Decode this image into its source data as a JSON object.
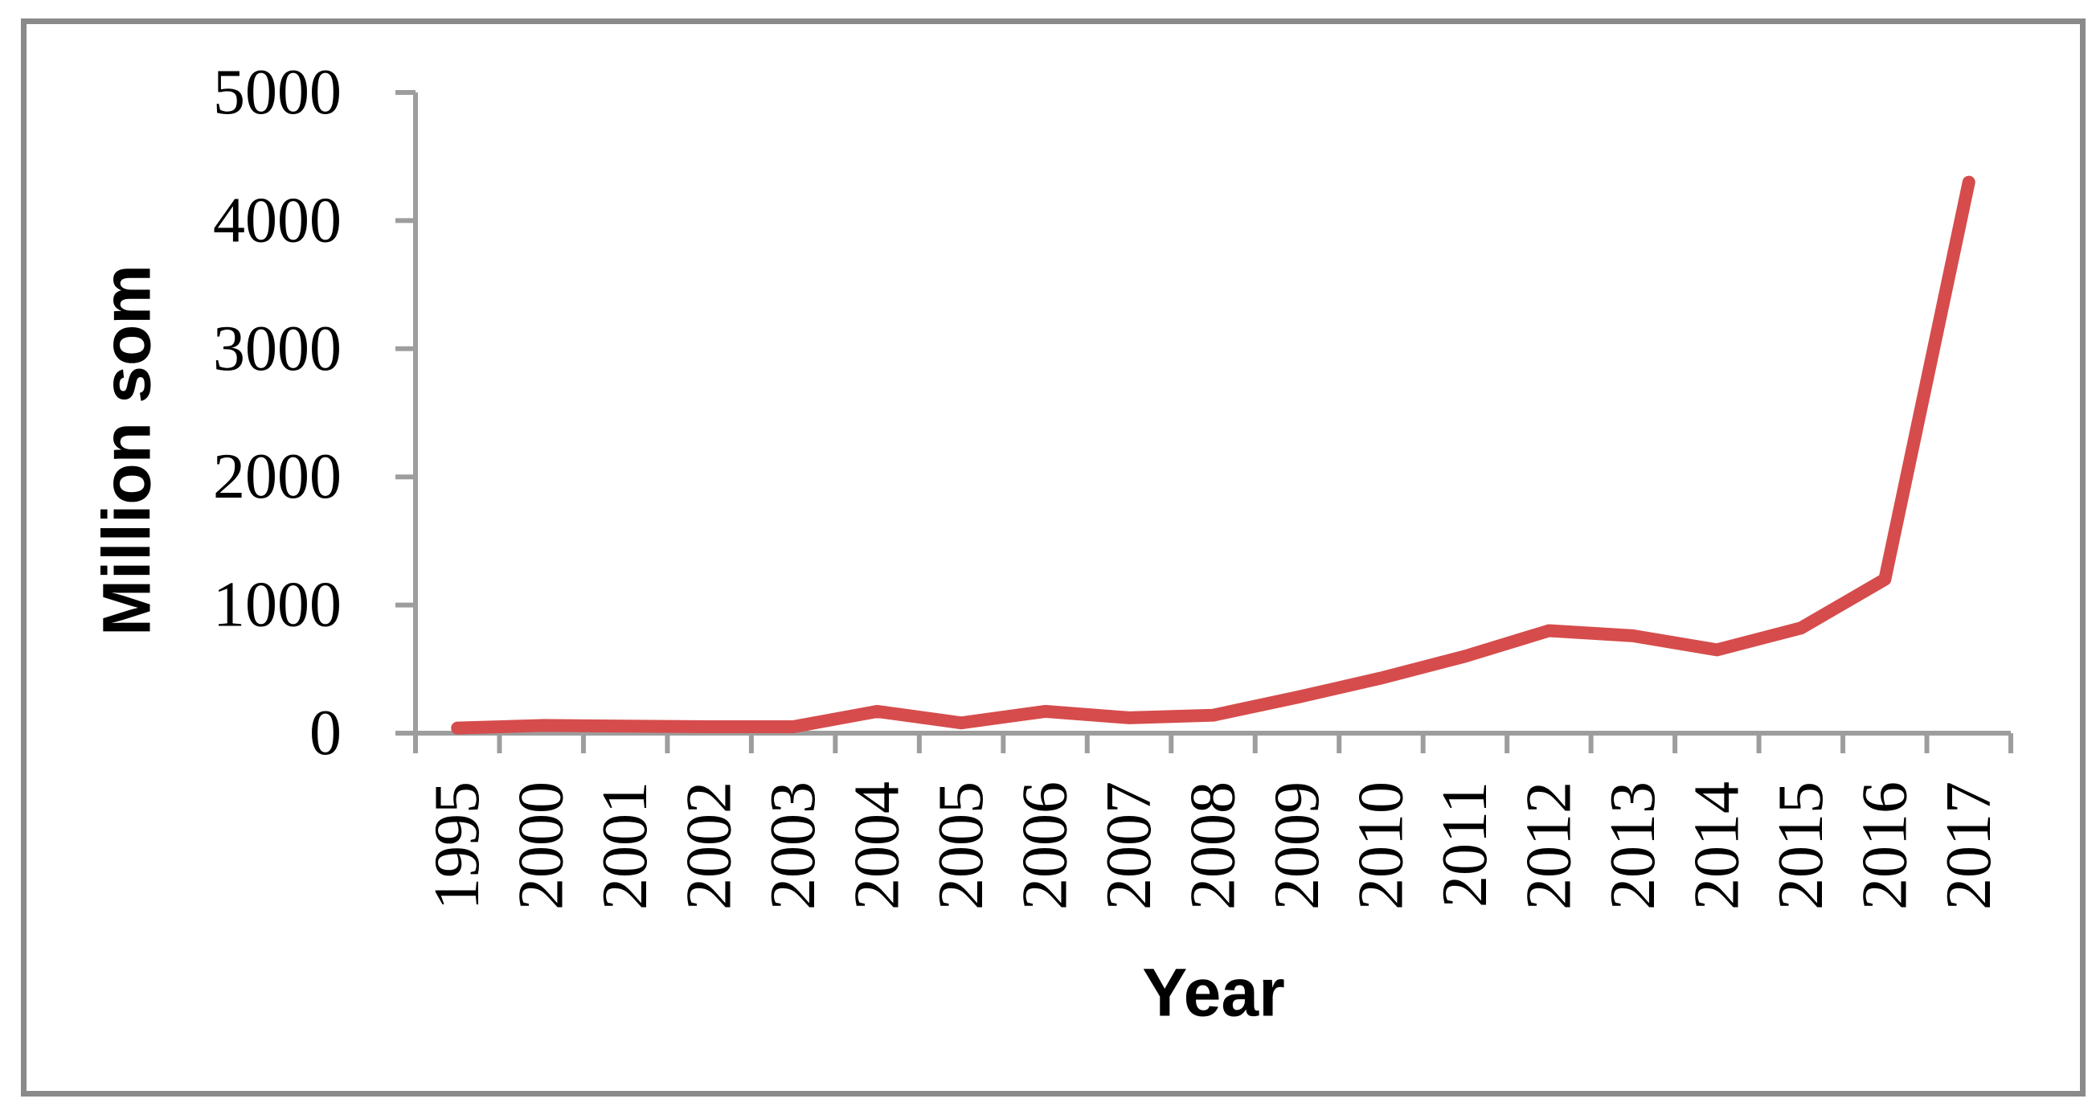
{
  "chart_data": {
    "type": "line",
    "title": "",
    "xlabel": "Year",
    "ylabel": "Million som",
    "categories": [
      "1995",
      "2000",
      "2001",
      "2002",
      "2003",
      "2004",
      "2005",
      "2006",
      "2007",
      "2008",
      "2009",
      "2010",
      "2011",
      "2012",
      "2013",
      "2014",
      "2015",
      "2016",
      "2017"
    ],
    "values": [
      40,
      60,
      55,
      50,
      50,
      170,
      80,
      170,
      120,
      140,
      280,
      430,
      600,
      800,
      760,
      650,
      820,
      1200,
      4300
    ],
    "yticks": [
      0,
      1000,
      2000,
      3000,
      4000,
      5000
    ],
    "ylim": [
      0,
      5000
    ],
    "grid": false,
    "legend_position": "none",
    "line_color": "#d64c4c",
    "axis_color": "#9d9d9d",
    "frame_color": "#8a8a8a",
    "x_tick_label_rotation": "vertical-bottom-to-top"
  }
}
